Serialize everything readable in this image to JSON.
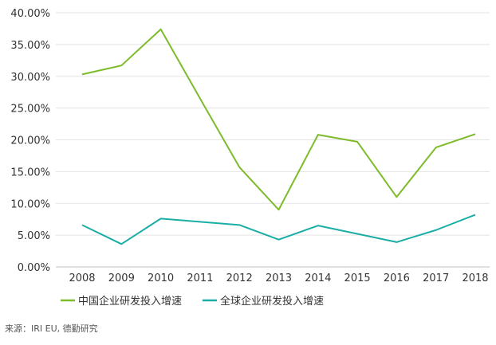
{
  "chart_data": {
    "type": "line",
    "categories": [
      "2008",
      "2009",
      "2010",
      "2011",
      "2012",
      "2013",
      "2014",
      "2015",
      "2016",
      "2017",
      "2018"
    ],
    "series": [
      {
        "name": "中国企业研发投入增速",
        "color": "#7dbb2a",
        "values": [
          30.3,
          31.7,
          37.4,
          26.5,
          15.7,
          9.0,
          20.8,
          19.7,
          11.0,
          18.8,
          20.9
        ]
      },
      {
        "name": "全球企业研发投入增速",
        "color": "#1aaea6",
        "values": [
          6.6,
          3.6,
          7.6,
          7.1,
          6.6,
          4.3,
          6.5,
          5.2,
          3.9,
          5.8,
          8.2
        ]
      }
    ],
    "yticks": [
      "0.00%",
      "5.00%",
      "10.00%",
      "15.00%",
      "20.00%",
      "25.00%",
      "30.00%",
      "35.00%",
      "40.00%"
    ],
    "ylim": [
      0,
      40
    ],
    "grid": true,
    "legend_position": "bottom-left"
  },
  "source_text": "来源：IRI EU, 德勤研究"
}
